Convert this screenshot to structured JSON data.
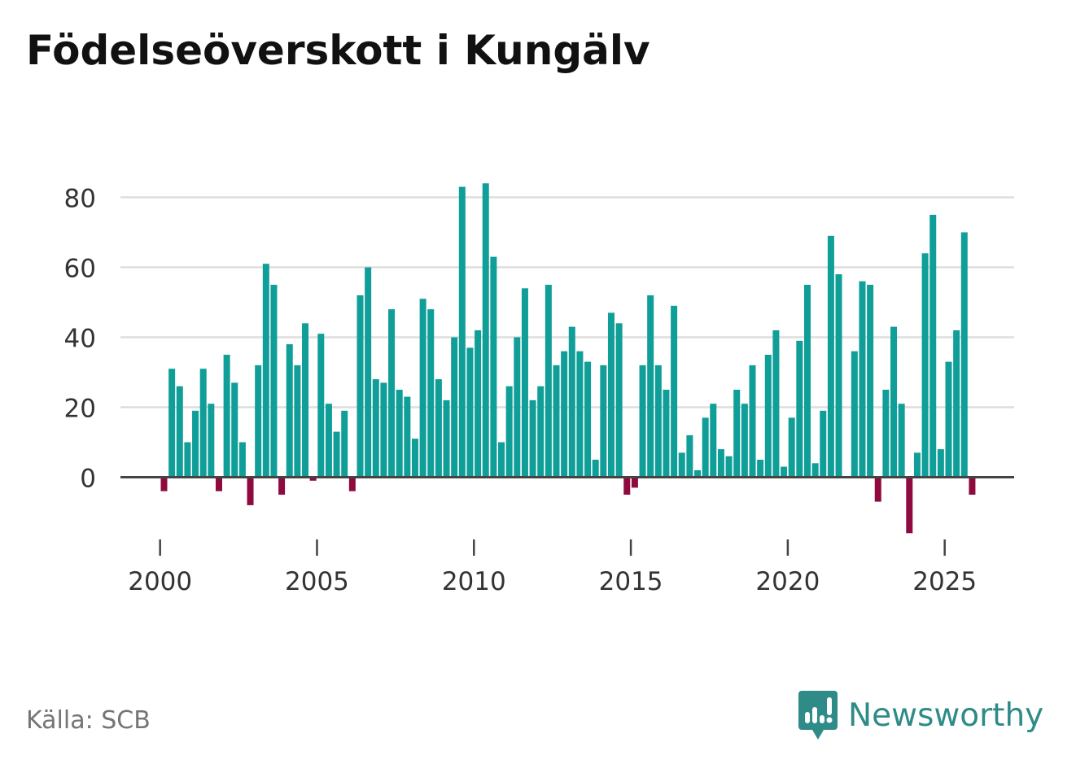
{
  "title": "Födelseöverskott i Kungälv",
  "source": "Källa: SCB",
  "brand": {
    "name": "Newsworthy",
    "icon": "newsworthy-logo-icon"
  },
  "colors": {
    "positive": "#109e98",
    "negative": "#8e0a3f",
    "grid": "#dddddd",
    "axis": "#444444",
    "brand": "#2e8b87"
  },
  "chart_data": {
    "type": "bar",
    "title": "Födelseöverskott i Kungälv",
    "xlabel": "",
    "ylabel": "",
    "frequency": "quarterly",
    "ylim": [
      -16,
      88
    ],
    "y_ticks": [
      0,
      20,
      40,
      60,
      80
    ],
    "x_ticks": [
      "2000",
      "2005",
      "2010",
      "2015",
      "2020",
      "2025"
    ],
    "grid": true,
    "legend": "none",
    "x_start": "2000 Q1",
    "values": [
      -4,
      31,
      26,
      10,
      19,
      31,
      21,
      -4,
      35,
      27,
      10,
      -8,
      32,
      61,
      55,
      -5,
      38,
      32,
      44,
      -1,
      41,
      21,
      13,
      19,
      -4,
      52,
      60,
      28,
      27,
      48,
      25,
      23,
      11,
      51,
      48,
      28,
      22,
      40,
      83,
      37,
      42,
      84,
      63,
      10,
      26,
      40,
      54,
      22,
      26,
      55,
      32,
      36,
      43,
      36,
      33,
      5,
      32,
      47,
      44,
      -5,
      -3,
      32,
      52,
      32,
      25,
      49,
      7,
      12,
      2,
      17,
      21,
      8,
      6,
      25,
      21,
      32,
      5,
      35,
      42,
      3,
      17,
      39,
      55,
      4,
      19,
      69,
      58,
      0,
      36,
      56,
      55,
      -7,
      25,
      43,
      21,
      -16,
      7,
      64,
      75,
      8,
      33,
      42,
      70,
      -5
    ]
  }
}
